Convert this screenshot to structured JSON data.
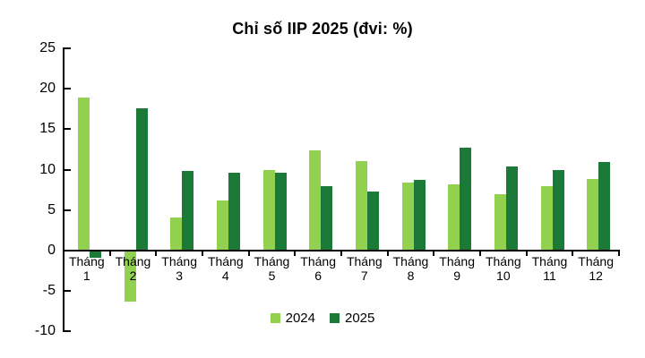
{
  "chart_data": {
    "type": "bar",
    "title": "Chỉ số IIP 2025 (đvi: %)",
    "categories": [
      "Tháng 1",
      "Tháng 2",
      "Tháng 3",
      "Tháng 4",
      "Tháng 5",
      "Tháng 6",
      "Tháng 7",
      "Tháng 8",
      "Tháng 9",
      "Tháng 10",
      "Tháng 11",
      "Tháng 12"
    ],
    "series": [
      {
        "name": "2024",
        "color": "#92D050",
        "values": [
          18.9,
          -6.3,
          4.1,
          6.2,
          10.0,
          12.4,
          11.1,
          8.4,
          8.2,
          7.0,
          8.0,
          8.8
        ]
      },
      {
        "name": "2025",
        "color": "#1C7A38",
        "values": [
          -0.9,
          17.6,
          9.9,
          9.6,
          9.6,
          8.0,
          7.3,
          8.7,
          12.7,
          10.4,
          10.0,
          11.0
        ]
      }
    ],
    "xlabel": "",
    "ylabel": "",
    "ylim": [
      -10,
      25
    ],
    "yticks": [
      25,
      20,
      15,
      10,
      5,
      0,
      -5,
      -10
    ],
    "legend_position": "bottom",
    "grid": false,
    "axis_color": "#000000",
    "background_color": "#FFFFFF"
  }
}
